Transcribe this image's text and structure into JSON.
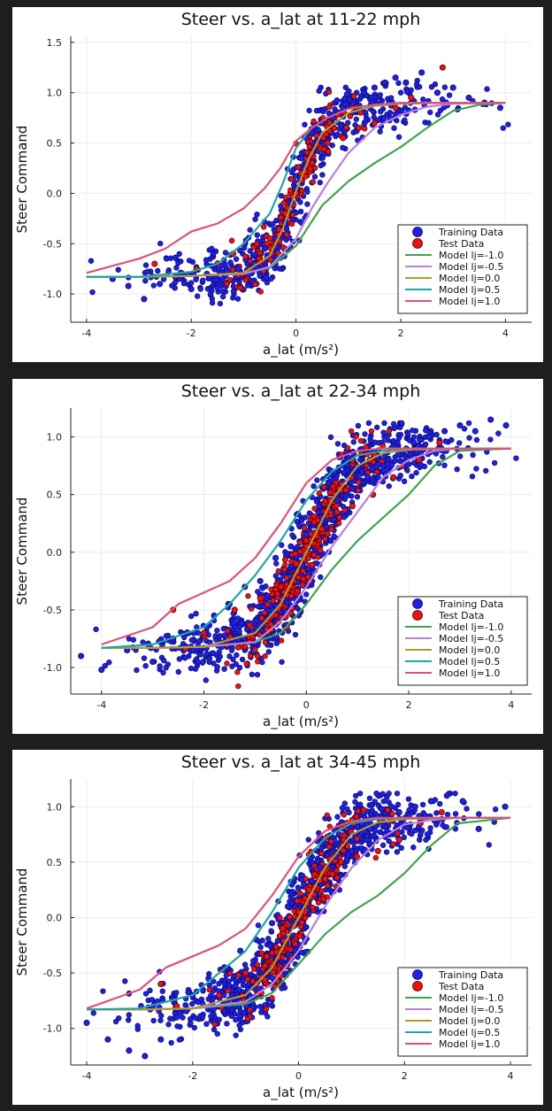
{
  "colors": {
    "training": "#1f1fe6",
    "test": "#ee1111",
    "lj_m10": "#3da64a",
    "lj_m05": "#b87fe0",
    "lj_00": "#b29a2e",
    "lj_05": "#1fa5a5",
    "lj_10": "#e0507a"
  },
  "legend": [
    "Training Data",
    "Test Data",
    "Model lj=-1.0",
    "Model lj=-0.5",
    "Model lj=0.0",
    "Model lj=0.5",
    "Model lj=1.0"
  ],
  "chart_data": [
    {
      "type": "scatter",
      "title": "Steer vs. a_lat at 11-22 mph",
      "xlabel": "a_lat (m/s²)",
      "ylabel": "Steer Command",
      "xlim": [
        -4.3,
        4.5
      ],
      "ylim": [
        -1.28,
        1.56
      ],
      "xticks": [
        -4,
        -2,
        0,
        2,
        4
      ],
      "yticks": [
        -1.0,
        -0.5,
        0.0,
        0.5,
        1.0,
        1.5
      ],
      "grid": true,
      "legend_position": "bottom-right",
      "series": [
        {
          "name": "Training Data",
          "kind": "scatter",
          "x": [
            -3.5,
            -3.2,
            -2.9,
            -2.6,
            -2.3,
            -2.0,
            -1.7,
            -1.4,
            -1.1,
            -0.8,
            -0.6,
            -0.4,
            -0.2,
            -0.1,
            0.0,
            0.1,
            0.2,
            0.3,
            0.5,
            0.7,
            0.9,
            1.1,
            1.3,
            1.5,
            1.7,
            1.9,
            2.1,
            2.4,
            2.7,
            3.0,
            3.3,
            3.6,
            3.9
          ],
          "y": [
            -0.85,
            -0.92,
            -1.05,
            -0.9,
            -0.83,
            -0.95,
            -0.8,
            -0.85,
            -0.75,
            -0.7,
            -0.55,
            -0.45,
            -0.3,
            -0.1,
            0.05,
            0.35,
            0.55,
            0.6,
            0.7,
            0.75,
            0.85,
            0.9,
            1.0,
            1.05,
            1.1,
            1.15,
            1.1,
            1.2,
            1.0,
            1.05,
            0.95,
            0.9,
            0.85
          ]
        },
        {
          "name": "Test Data",
          "kind": "scatter",
          "x": [
            -2.7,
            -1.9,
            -1.2,
            -0.5,
            -0.2,
            0.0,
            0.1,
            0.3,
            0.6,
            0.9,
            1.2,
            1.5,
            1.9,
            2.2,
            2.8
          ],
          "y": [
            -0.7,
            -0.75,
            -0.6,
            -0.45,
            -0.2,
            0.0,
            0.2,
            0.4,
            0.5,
            0.55,
            0.65,
            0.7,
            0.85,
            0.95,
            1.25
          ]
        },
        {
          "name": "Model lj=-1.0",
          "kind": "line",
          "x": [
            -4,
            -3,
            -2,
            -1,
            -0.5,
            0,
            0.5,
            1,
            1.5,
            2,
            2.5,
            3,
            3.5,
            4
          ],
          "y": [
            -0.83,
            -0.83,
            -0.82,
            -0.79,
            -0.74,
            -0.52,
            -0.12,
            0.12,
            0.3,
            0.46,
            0.65,
            0.82,
            0.88,
            0.9
          ]
        },
        {
          "name": "Model lj=-0.5",
          "kind": "line",
          "x": [
            -4,
            -3,
            -2,
            -1,
            -0.5,
            0,
            0.3,
            0.6,
            1,
            1.5,
            2,
            2.5,
            3,
            4
          ],
          "y": [
            -0.83,
            -0.83,
            -0.82,
            -0.8,
            -0.73,
            -0.45,
            -0.15,
            0.1,
            0.4,
            0.65,
            0.78,
            0.86,
            0.89,
            0.9
          ]
        },
        {
          "name": "Model lj=0.0",
          "kind": "line",
          "x": [
            -4,
            -3,
            -2,
            -1,
            -0.5,
            -0.25,
            0,
            0.25,
            0.5,
            1,
            1.5,
            2,
            3,
            4
          ],
          "y": [
            -0.83,
            -0.83,
            -0.82,
            -0.79,
            -0.62,
            -0.35,
            0.02,
            0.35,
            0.6,
            0.8,
            0.87,
            0.89,
            0.9,
            0.9
          ]
        },
        {
          "name": "Model lj=0.5",
          "kind": "line",
          "x": [
            -4,
            -3,
            -2,
            -1.5,
            -1,
            -0.5,
            -0.25,
            0,
            0.3,
            0.6,
            1,
            1.5,
            2,
            3,
            4
          ],
          "y": [
            -0.83,
            -0.83,
            -0.78,
            -0.7,
            -0.5,
            -0.2,
            0.1,
            0.45,
            0.65,
            0.75,
            0.84,
            0.88,
            0.9,
            0.9,
            0.9
          ]
        },
        {
          "name": "Model lj=1.0",
          "kind": "line",
          "x": [
            -4,
            -3,
            -2.5,
            -2,
            -1.5,
            -1,
            -0.6,
            -0.3,
            0,
            0.3,
            0.6,
            1,
            1.5,
            2,
            3,
            4
          ],
          "y": [
            -0.79,
            -0.65,
            -0.55,
            -0.38,
            -0.3,
            -0.15,
            0.05,
            0.25,
            0.52,
            0.65,
            0.75,
            0.84,
            0.88,
            0.9,
            0.9,
            0.9
          ]
        }
      ]
    },
    {
      "type": "scatter",
      "title": "Steer vs. a_lat at 22-34 mph",
      "xlabel": "a_lat (m/s²)",
      "ylabel": "Steer Command",
      "xlim": [
        -4.6,
        4.4
      ],
      "ylim": [
        -1.23,
        1.25
      ],
      "xticks": [
        -4,
        -2,
        0,
        2,
        4
      ],
      "yticks": [
        -1.0,
        -0.5,
        0.0,
        0.5,
        1.0
      ],
      "grid": true,
      "legend_position": "bottom-right",
      "series": [
        {
          "name": "Training Data",
          "kind": "scatter",
          "x": [
            -4.4,
            -4.0,
            -3.5,
            -3.0,
            -2.6,
            -2.2,
            -1.8,
            -1.5,
            -1.2,
            -0.9,
            -0.6,
            -0.3,
            0.0,
            0.3,
            0.6,
            0.9,
            1.2,
            1.5,
            1.8,
            2.1,
            2.4,
            2.7,
            3.0,
            3.3,
            3.6,
            3.9
          ],
          "y": [
            -0.9,
            -1.02,
            -0.85,
            -0.95,
            -0.75,
            -0.7,
            -0.55,
            -0.45,
            -0.3,
            -0.25,
            -0.05,
            0.05,
            0.15,
            0.3,
            0.45,
            0.55,
            0.65,
            0.75,
            0.85,
            0.95,
            1.0,
            1.05,
            1.1,
            1.05,
            1.15,
            1.1
          ]
        },
        {
          "name": "Test Data",
          "kind": "scatter",
          "x": [
            -2.6,
            -2.0,
            -1.4,
            -0.9,
            -0.5,
            -0.2,
            0.0,
            0.3,
            0.6,
            0.9,
            1.3,
            1.7,
            2.2,
            2.6
          ],
          "y": [
            -0.5,
            -0.7,
            -0.5,
            -0.4,
            -0.3,
            -0.1,
            0.1,
            0.2,
            0.35,
            0.4,
            0.5,
            0.65,
            0.8,
            0.95
          ]
        },
        {
          "name": "Model lj=-1.0",
          "kind": "line",
          "x": [
            -4,
            -3,
            -2,
            -1,
            -0.5,
            0,
            0.5,
            1,
            1.5,
            2,
            2.5,
            3,
            4
          ],
          "y": [
            -0.83,
            -0.83,
            -0.82,
            -0.78,
            -0.7,
            -0.45,
            -0.15,
            0.1,
            0.3,
            0.5,
            0.75,
            0.88,
            0.9
          ]
        },
        {
          "name": "Model lj=-0.5",
          "kind": "line",
          "x": [
            -4,
            -3,
            -2,
            -1,
            -0.5,
            0,
            0.5,
            1,
            1.5,
            2,
            2.5,
            3,
            4
          ],
          "y": [
            -0.83,
            -0.83,
            -0.82,
            -0.78,
            -0.6,
            -0.3,
            0.05,
            0.35,
            0.65,
            0.8,
            0.88,
            0.9,
            0.9
          ]
        },
        {
          "name": "Model lj=0.0",
          "kind": "line",
          "x": [
            -4,
            -3,
            -2,
            -1,
            -0.5,
            0,
            0.5,
            1,
            1.5,
            2,
            3,
            4
          ],
          "y": [
            -0.83,
            -0.83,
            -0.82,
            -0.7,
            -0.45,
            0.0,
            0.45,
            0.75,
            0.86,
            0.89,
            0.9,
            0.9
          ]
        },
        {
          "name": "Model lj=0.5",
          "kind": "line",
          "x": [
            -4,
            -3,
            -2,
            -1.5,
            -1,
            -0.5,
            0,
            0.5,
            1,
            1.5,
            2,
            3,
            4
          ],
          "y": [
            -0.83,
            -0.8,
            -0.65,
            -0.45,
            -0.2,
            0.1,
            0.45,
            0.7,
            0.84,
            0.88,
            0.9,
            0.9,
            0.9
          ]
        },
        {
          "name": "Model lj=1.0",
          "kind": "line",
          "x": [
            -4,
            -3,
            -2.5,
            -2,
            -1.5,
            -1,
            -0.5,
            0,
            0.5,
            1,
            1.5,
            2,
            3,
            4
          ],
          "y": [
            -0.8,
            -0.65,
            -0.45,
            -0.35,
            -0.25,
            -0.05,
            0.25,
            0.6,
            0.8,
            0.88,
            0.9,
            0.9,
            0.9,
            0.9
          ]
        }
      ]
    },
    {
      "type": "scatter",
      "title": "Steer vs. a_lat at 34-45 mph",
      "xlabel": "a_lat (m/s²)",
      "ylabel": "Steer Command",
      "xlim": [
        -4.3,
        4.4
      ],
      "ylim": [
        -1.33,
        1.25
      ],
      "xticks": [
        -4,
        -2,
        0,
        2,
        4
      ],
      "yticks": [
        -1.0,
        -0.5,
        0.0,
        0.5,
        1.0
      ],
      "grid": true,
      "legend_position": "bottom-right",
      "series": [
        {
          "name": "Training Data",
          "kind": "scatter",
          "x": [
            -4.0,
            -3.6,
            -3.2,
            -2.9,
            -2.6,
            -2.3,
            -2.0,
            -1.7,
            -1.4,
            -1.1,
            -0.8,
            -0.5,
            -0.2,
            0.1,
            0.4,
            0.7,
            1.0,
            1.3,
            1.6,
            1.9,
            2.2,
            2.5,
            2.8,
            3.1,
            3.4,
            3.9
          ],
          "y": [
            -0.95,
            -1.1,
            -1.2,
            -1.25,
            -1.1,
            -0.9,
            -0.7,
            -0.55,
            -0.45,
            -0.3,
            -0.2,
            -0.05,
            0.1,
            0.3,
            0.45,
            0.55,
            0.6,
            0.7,
            0.85,
            0.95,
            1.0,
            1.05,
            1.1,
            1.05,
            0.8,
            1.0
          ]
        },
        {
          "name": "Test Data",
          "kind": "scatter",
          "x": [
            -2.6,
            -2.3,
            -1.5,
            -1.0,
            -0.6,
            -0.3,
            0.0,
            0.2,
            0.5,
            0.8,
            1.1,
            1.5,
            1.9,
            2.3,
            2.7
          ],
          "y": [
            -0.6,
            -0.8,
            -0.7,
            -0.5,
            -0.35,
            -0.1,
            0.05,
            0.25,
            0.35,
            0.5,
            0.55,
            0.6,
            0.7,
            0.85,
            0.95
          ]
        },
        {
          "name": "Model lj=-1.0",
          "kind": "line",
          "x": [
            -4,
            -3,
            -2,
            -1,
            -0.5,
            0,
            0.5,
            1,
            1.5,
            2,
            2.5,
            3,
            4
          ],
          "y": [
            -0.83,
            -0.83,
            -0.82,
            -0.78,
            -0.68,
            -0.42,
            -0.15,
            0.05,
            0.2,
            0.4,
            0.65,
            0.85,
            0.9
          ]
        },
        {
          "name": "Model lj=-0.5",
          "kind": "line",
          "x": [
            -4,
            -3,
            -2,
            -1,
            -0.5,
            0,
            0.5,
            1,
            1.5,
            2,
            2.5,
            3,
            4
          ],
          "y": [
            -0.83,
            -0.83,
            -0.82,
            -0.76,
            -0.6,
            -0.3,
            0.1,
            0.45,
            0.7,
            0.84,
            0.88,
            0.9,
            0.9
          ]
        },
        {
          "name": "Model lj=0.0",
          "kind": "line",
          "x": [
            -4,
            -3,
            -2,
            -1,
            -0.5,
            0,
            0.5,
            1,
            1.5,
            2,
            3,
            4
          ],
          "y": [
            -0.83,
            -0.83,
            -0.82,
            -0.7,
            -0.45,
            0.0,
            0.45,
            0.75,
            0.86,
            0.89,
            0.9,
            0.9
          ]
        },
        {
          "name": "Model lj=0.5",
          "kind": "line",
          "x": [
            -4,
            -3,
            -2,
            -1.5,
            -1,
            -0.5,
            0,
            0.5,
            1,
            1.5,
            2,
            3,
            4
          ],
          "y": [
            -0.83,
            -0.82,
            -0.7,
            -0.5,
            -0.3,
            0.05,
            0.45,
            0.72,
            0.85,
            0.89,
            0.9,
            0.9,
            0.9
          ]
        },
        {
          "name": "Model lj=1.0",
          "kind": "line",
          "x": [
            -4,
            -3,
            -2.5,
            -2,
            -1.5,
            -1,
            -0.5,
            0,
            0.5,
            1,
            1.5,
            2,
            3,
            4
          ],
          "y": [
            -0.82,
            -0.65,
            -0.45,
            -0.35,
            -0.25,
            -0.1,
            0.2,
            0.55,
            0.78,
            0.87,
            0.9,
            0.9,
            0.9,
            0.9
          ]
        }
      ]
    }
  ]
}
